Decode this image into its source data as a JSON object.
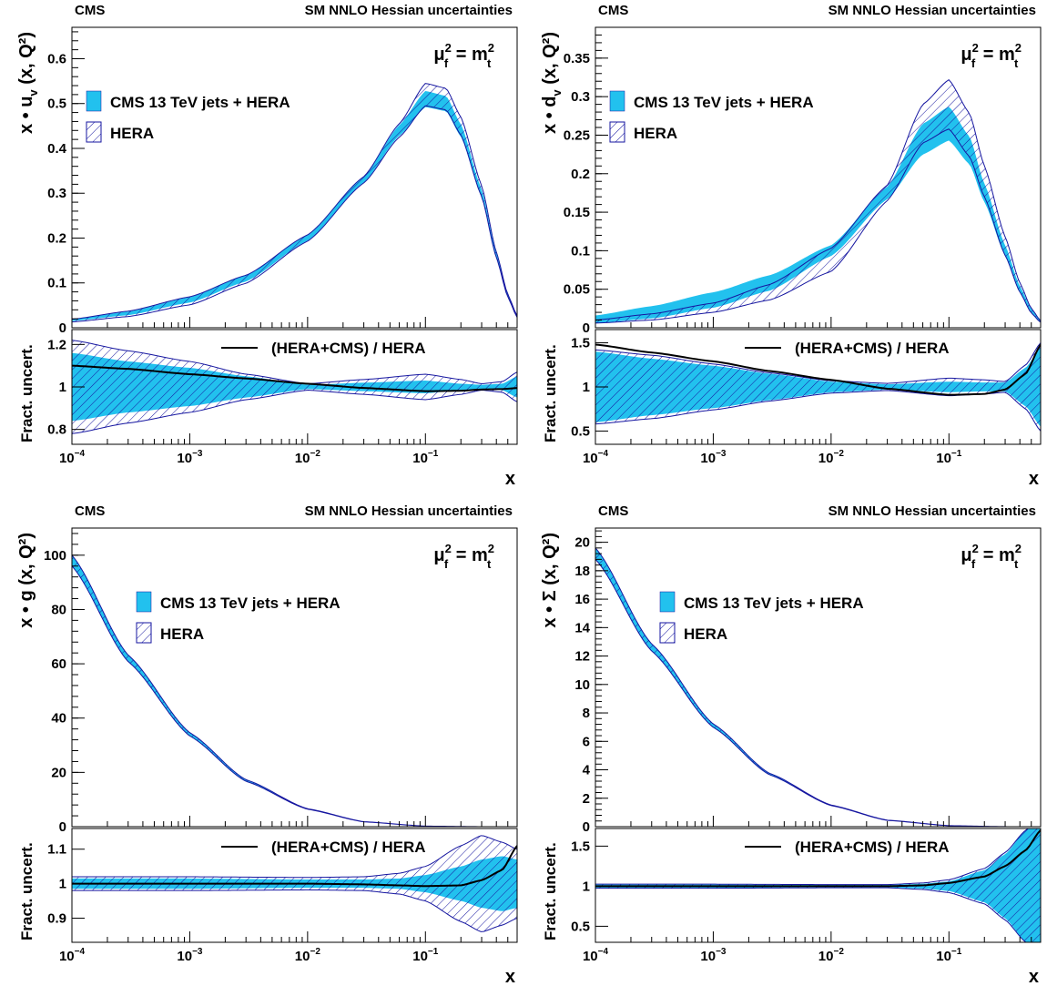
{
  "figure": {
    "experiment_label": "CMS",
    "fit_label": "SM NNLO Hessian uncertainties",
    "scale_label": "μ²_f = m²_t",
    "colors": {
      "cms_band": "#22c1ee",
      "hera_hatch": "#1616a0",
      "central": "#000000",
      "frame": "#000000"
    }
  },
  "chart_data": [
    {
      "type": "area",
      "panel": "top-left",
      "ylabel": "x • u_v (x, Q²)",
      "xlabel": "x",
      "xscale": "log",
      "xlim": [
        0.0001,
        0.6
      ],
      "ylim": [
        0,
        0.67
      ],
      "yticks": [
        0,
        0.1,
        0.2,
        0.3,
        0.4,
        0.5,
        0.6
      ],
      "ytick_labels": [
        "0",
        "0.1",
        "0.2",
        "0.3",
        "0.4",
        "0.5",
        "0.6"
      ],
      "legend": [
        "CMS 13 TeV jets + HERA",
        "HERA"
      ],
      "x": [
        0.0001,
        0.0003,
        0.001,
        0.003,
        0.01,
        0.03,
        0.06,
        0.1,
        0.15,
        0.2,
        0.3,
        0.4,
        0.5,
        0.6
      ],
      "series": [
        {
          "name": "CMS 13 TeV jets + HERA",
          "central": [
            0.017,
            0.032,
            0.062,
            0.11,
            0.2,
            0.33,
            0.44,
            0.51,
            0.5,
            0.44,
            0.3,
            0.16,
            0.07,
            0.025
          ],
          "unc": [
            0.002,
            0.004,
            0.006,
            0.007,
            0.006,
            0.006,
            0.012,
            0.018,
            0.017,
            0.014,
            0.009,
            0.005,
            0.003,
            0.002
          ]
        },
        {
          "name": "HERA",
          "central": [
            0.016,
            0.031,
            0.06,
            0.108,
            0.2,
            0.33,
            0.44,
            0.52,
            0.51,
            0.45,
            0.305,
            0.162,
            0.071,
            0.025
          ],
          "unc": [
            0.003,
            0.006,
            0.009,
            0.009,
            0.007,
            0.007,
            0.015,
            0.025,
            0.024,
            0.02,
            0.012,
            0.006,
            0.003,
            0.002
          ]
        }
      ],
      "ratio": {
        "ylabel": "Fract. uncert.",
        "legend": "(HERA+CMS) / HERA",
        "ylim": [
          0.73,
          1.27
        ],
        "yticks": [
          0.8,
          1,
          1.2
        ],
        "ytick_labels": [
          "0.8",
          "1",
          "1.2"
        ],
        "x": [
          0.0001,
          0.0003,
          0.001,
          0.003,
          0.01,
          0.03,
          0.1,
          0.2,
          0.3,
          0.45,
          0.6
        ],
        "central": [
          1.1,
          1.085,
          1.06,
          1.04,
          1.015,
          0.995,
          0.98,
          0.982,
          0.988,
          0.99,
          0.995
        ],
        "cms_unc": [
          0.16,
          0.12,
          0.09,
          0.05,
          0.01,
          0.02,
          0.03,
          0.015,
          0.01,
          0.015,
          0.05
        ],
        "hera_unc": [
          0.22,
          0.17,
          0.12,
          0.06,
          0.015,
          0.035,
          0.06,
          0.035,
          0.015,
          0.025,
          0.07
        ]
      }
    },
    {
      "type": "area",
      "panel": "top-right",
      "ylabel": "x • d_v (x, Q²)",
      "xlabel": "x",
      "xscale": "log",
      "xlim": [
        0.0001,
        0.6
      ],
      "ylim": [
        0,
        0.39
      ],
      "yticks": [
        0,
        0.05,
        0.1,
        0.15,
        0.2,
        0.25,
        0.3,
        0.35
      ],
      "ytick_labels": [
        "0",
        "0.05",
        "0.1",
        "0.15",
        "0.2",
        "0.25",
        "0.3",
        "0.35"
      ],
      "legend": [
        "CMS 13 TeV jets + HERA",
        "HERA"
      ],
      "x": [
        0.0001,
        0.0003,
        0.001,
        0.003,
        0.01,
        0.03,
        0.06,
        0.1,
        0.15,
        0.2,
        0.3,
        0.4,
        0.5,
        0.6
      ],
      "series": [
        {
          "name": "CMS 13 TeV jets + HERA",
          "central": [
            0.011,
            0.02,
            0.036,
            0.058,
            0.1,
            0.175,
            0.245,
            0.265,
            0.23,
            0.175,
            0.1,
            0.05,
            0.022,
            0.008
          ],
          "unc": [
            0.005,
            0.008,
            0.01,
            0.01,
            0.007,
            0.008,
            0.02,
            0.022,
            0.018,
            0.012,
            0.007,
            0.004,
            0.002,
            0.001
          ]
        },
        {
          "name": "HERA",
          "central": [
            0.008,
            0.014,
            0.026,
            0.046,
            0.088,
            0.175,
            0.265,
            0.29,
            0.25,
            0.19,
            0.106,
            0.052,
            0.022,
            0.008
          ],
          "unc": [
            0.002,
            0.004,
            0.006,
            0.01,
            0.015,
            0.01,
            0.025,
            0.032,
            0.028,
            0.02,
            0.012,
            0.006,
            0.003,
            0.001
          ]
        }
      ],
      "ratio": {
        "ylabel": "Fract. uncert.",
        "legend": "(HERA+CMS) / HERA",
        "ylim": [
          0.35,
          1.65
        ],
        "yticks": [
          0.5,
          1,
          1.5
        ],
        "ytick_labels": [
          "0.5",
          "1",
          "1.5"
        ],
        "x": [
          0.0001,
          0.0003,
          0.001,
          0.003,
          0.01,
          0.03,
          0.1,
          0.2,
          0.3,
          0.45,
          0.6
        ],
        "central": [
          1.48,
          1.39,
          1.29,
          1.18,
          1.08,
          0.98,
          0.91,
          0.92,
          0.97,
          1.15,
          1.48
        ],
        "cms_unc": [
          0.4,
          0.32,
          0.24,
          0.15,
          0.06,
          0.03,
          0.06,
          0.05,
          0.05,
          0.22,
          0.45
        ],
        "hera_unc": [
          0.42,
          0.36,
          0.26,
          0.16,
          0.07,
          0.04,
          0.1,
          0.08,
          0.06,
          0.25,
          0.5
        ]
      }
    },
    {
      "type": "area",
      "panel": "bottom-left",
      "ylabel": "x • g (x, Q²)",
      "xlabel": "x",
      "xscale": "log",
      "xlim": [
        0.0001,
        0.6
      ],
      "ylim": [
        0,
        110
      ],
      "yticks": [
        0,
        20,
        40,
        60,
        80,
        100
      ],
      "ytick_labels": [
        "0",
        "20",
        "40",
        "60",
        "80",
        "100"
      ],
      "legend": [
        "CMS 13 TeV jets + HERA",
        "HERA"
      ],
      "x": [
        0.0001,
        0.0003,
        0.001,
        0.003,
        0.01,
        0.03,
        0.1,
        0.3,
        0.6
      ],
      "series": [
        {
          "name": "CMS 13 TeV jets + HERA",
          "central": [
            98,
            62,
            34,
            17,
            6.5,
            1.8,
            0.2,
            0.01,
            0.0
          ],
          "unc": [
            2.0,
            1.2,
            0.6,
            0.3,
            0.1,
            0.04,
            0.01,
            0.002,
            0.0
          ]
        },
        {
          "name": "HERA",
          "central": [
            98,
            62,
            34,
            17,
            6.5,
            1.8,
            0.2,
            0.01,
            0.0
          ],
          "unc": [
            2.0,
            1.2,
            0.6,
            0.3,
            0.1,
            0.04,
            0.01,
            0.003,
            0.0
          ]
        }
      ],
      "ratio": {
        "ylabel": "Fract. uncert.",
        "legend": "(HERA+CMS) / HERA",
        "ylim": [
          0.83,
          1.16
        ],
        "yticks": [
          0.9,
          1,
          1.1
        ],
        "ytick_labels": [
          "0.9",
          "1",
          "1.1"
        ],
        "x": [
          0.0001,
          0.001,
          0.01,
          0.03,
          0.06,
          0.1,
          0.2,
          0.3,
          0.45,
          0.6
        ],
        "central": [
          1.0,
          1.0,
          1.0,
          0.998,
          0.995,
          0.993,
          0.995,
          1.01,
          1.04,
          1.11
        ],
        "cms_unc": [
          0.015,
          0.015,
          0.012,
          0.012,
          0.015,
          0.025,
          0.05,
          0.07,
          0.08,
          0.07
        ],
        "hera_unc": [
          0.02,
          0.02,
          0.018,
          0.02,
          0.03,
          0.05,
          0.11,
          0.14,
          0.12,
          0.1
        ]
      }
    },
    {
      "type": "area",
      "panel": "bottom-right",
      "ylabel": "x • Σ (x, Q²)",
      "xlabel": "x",
      "xscale": "log",
      "xlim": [
        0.0001,
        0.6
      ],
      "ylim": [
        0,
        21
      ],
      "yticks": [
        0,
        2,
        4,
        6,
        8,
        10,
        12,
        14,
        16,
        18,
        20
      ],
      "ytick_labels": [
        "0",
        "2",
        "4",
        "6",
        "8",
        "10",
        "12",
        "14",
        "16",
        "18",
        "20"
      ],
      "legend": [
        "CMS 13 TeV jets + HERA",
        "HERA"
      ],
      "x": [
        0.0001,
        0.0003,
        0.001,
        0.003,
        0.01,
        0.03,
        0.1,
        0.3,
        0.6
      ],
      "series": [
        {
          "name": "CMS 13 TeV jets + HERA",
          "central": [
            19.2,
            12.6,
            7.1,
            3.7,
            1.5,
            0.45,
            0.07,
            0.003,
            0.0
          ],
          "unc": [
            0.4,
            0.25,
            0.12,
            0.05,
            0.02,
            0.01,
            0.003,
            0.001,
            0.0
          ]
        },
        {
          "name": "HERA",
          "central": [
            19.2,
            12.6,
            7.1,
            3.7,
            1.5,
            0.45,
            0.07,
            0.003,
            0.0
          ],
          "unc": [
            0.4,
            0.25,
            0.12,
            0.05,
            0.02,
            0.01,
            0.003,
            0.001,
            0.0
          ]
        }
      ],
      "ratio": {
        "ylabel": "Fract. uncert.",
        "legend": "(HERA+CMS) / HERA",
        "ylim": [
          0.3,
          1.72
        ],
        "yticks": [
          0.5,
          1,
          1.5
        ],
        "ytick_labels": [
          "0.5",
          "1",
          "1.5"
        ],
        "x": [
          0.0001,
          0.001,
          0.01,
          0.03,
          0.06,
          0.1,
          0.2,
          0.3,
          0.45,
          0.6
        ],
        "central": [
          1.0,
          1.0,
          1.0,
          1.0,
          1.01,
          1.04,
          1.12,
          1.25,
          1.45,
          1.7
        ],
        "cms_unc": [
          0.02,
          0.02,
          0.015,
          0.015,
          0.03,
          0.06,
          0.2,
          0.4,
          0.7,
          0.9
        ],
        "hera_unc": [
          0.025,
          0.025,
          0.02,
          0.02,
          0.04,
          0.08,
          0.22,
          0.42,
          0.7,
          0.9
        ]
      }
    }
  ]
}
